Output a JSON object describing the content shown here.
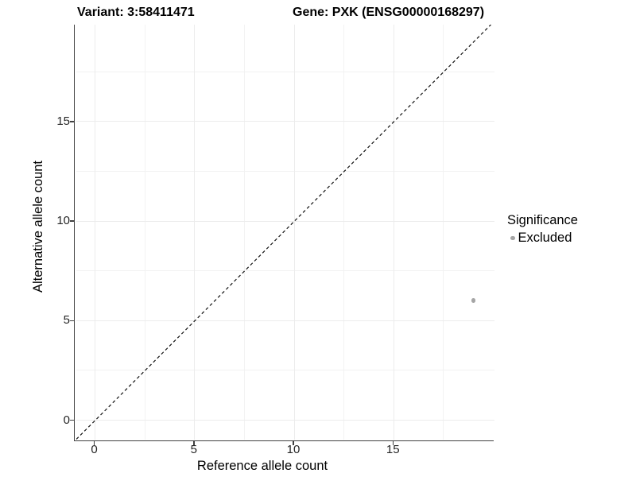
{
  "chart_data": {
    "type": "scatter",
    "title_left": "Variant: 3:58411471",
    "title_right": "Gene: PXK (ENSG00000168297)",
    "xlabel": "Reference allele count",
    "ylabel": "Alternative allele count",
    "xlim": [
      -1,
      20.1
    ],
    "ylim": [
      -1,
      19.9
    ],
    "x_ticks": [
      0,
      5,
      10,
      15
    ],
    "y_ticks": [
      0,
      5,
      10,
      15
    ],
    "x_minor_ticks": [
      2.5,
      7.5,
      12.5,
      17.5
    ],
    "y_minor_ticks": [
      2.5,
      7.5,
      12.5,
      17.5
    ],
    "grid": true,
    "series": [
      {
        "name": "Excluded",
        "color": "#a5a5a5",
        "points": [
          {
            "x": 19,
            "y": 6
          }
        ]
      }
    ],
    "identity_line": {
      "slope": 1,
      "intercept": 0,
      "style": "dashed",
      "color": "#111111"
    },
    "legend": {
      "title": "Significance",
      "position": "right",
      "items": [
        {
          "label": "Excluded",
          "color": "#a5a5a5"
        }
      ]
    }
  },
  "colors": {
    "background": "#ffffff",
    "axis_line": "#404040",
    "grid_major": "#ececec",
    "grid_minor": "#f2f2f2",
    "tick_label": "#262626",
    "title_text": "#000000"
  }
}
